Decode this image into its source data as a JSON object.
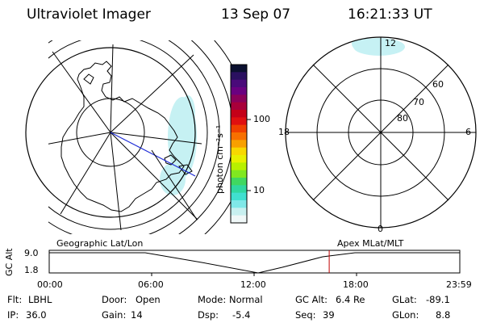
{
  "header": {
    "title": "Ultraviolet Imager",
    "date": "13 Sep 07",
    "time": "16:21:33 UT"
  },
  "colorbar": {
    "label": "photon cm⁻²s⁻¹",
    "ticks": [
      "100",
      "10"
    ],
    "colors": [
      "#0b1030",
      "#2a1060",
      "#4a0a7a",
      "#6a0080",
      "#8a005a",
      "#a8003a",
      "#c40018",
      "#e01010",
      "#f04000",
      "#f87000",
      "#f8a000",
      "#f8d800",
      "#e8f000",
      "#b8f000",
      "#80e820",
      "#40d860",
      "#30d8a0",
      "#40e0d0",
      "#80e8e8",
      "#c8f0f0",
      "#f0f8f8"
    ]
  },
  "geo_map": {
    "caption": "Geographic Lat/Lon"
  },
  "mag_map": {
    "caption": "Apex MLat/MLT",
    "lat_labels": [
      "60",
      "70",
      "80"
    ],
    "mlt_labels": [
      "12",
      "18",
      "6",
      "0"
    ]
  },
  "timeline": {
    "ylabel": "GC Alt",
    "yticks": [
      "9.0",
      "1.8"
    ],
    "xticks": [
      "00:00",
      "06:00",
      "12:00",
      "18:00",
      "23:59"
    ],
    "current_fraction": 0.682,
    "marker_color": "#c00000"
  },
  "info": {
    "flt_label": "Flt:",
    "flt_value": "LBHL",
    "ip_label": "IP:",
    "ip_value": "36.0",
    "door_label": "Door:",
    "door_value": "Open",
    "gain_label": "Gain:",
    "gain_value": "14",
    "mode_label": "Mode:",
    "mode_value": "Normal",
    "dsp_label": "Dsp:",
    "dsp_value": "-5.4",
    "gcalt_label": "GC Alt:",
    "gcalt_value": "6.4 Re",
    "seq_label": "Seq:",
    "seq_value": "39",
    "glat_label": "GLat:",
    "glat_value": "-89.1",
    "glon_label": "GLon:",
    "glon_value": "8.8"
  }
}
